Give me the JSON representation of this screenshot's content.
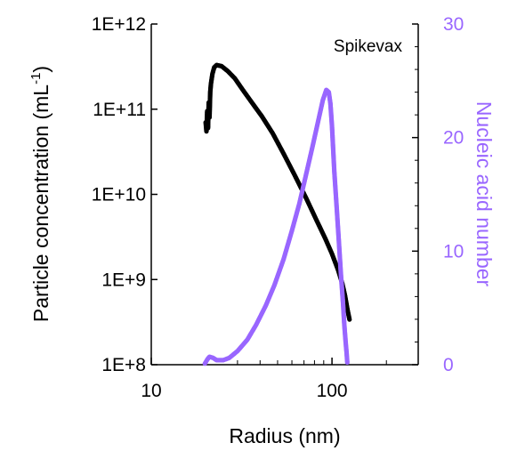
{
  "chart_data": {
    "type": "scatter",
    "annotation": "Spikevax",
    "x_axis": {
      "label": "Radius (nm)",
      "scale": "log",
      "range": [
        10,
        300
      ],
      "tick_values": [
        10,
        100
      ],
      "tick_labels": [
        "10",
        "100"
      ]
    },
    "y_left": {
      "label_main": "Particle concentration (mL",
      "label_sup": "-1",
      "label_end": ")",
      "scale": "log",
      "range": [
        100000000,
        1000000000000
      ],
      "tick_values": [
        100000000,
        1000000000,
        10000000000,
        100000000000,
        1000000000000
      ],
      "tick_labels": [
        "1E+8",
        "1E+9",
        "1E+10",
        "1E+11",
        "1E+12"
      ],
      "color": "#000000"
    },
    "y_right": {
      "label": "Nucleic acid number",
      "scale": "linear",
      "range": [
        0,
        30
      ],
      "tick_values": [
        0,
        10,
        20,
        30
      ],
      "tick_labels": [
        "0",
        "10",
        "20",
        "30"
      ],
      "color": "#9966ff"
    },
    "series": [
      {
        "axis": "left",
        "color": "#000000",
        "points": [
          [
            20.0,
            70000000000
          ],
          [
            20.2,
            55000000000
          ],
          [
            20.4,
            95000000000
          ],
          [
            20.6,
            60000000000
          ],
          [
            20.8,
            120000000000
          ],
          [
            21.0,
            80000000000
          ],
          [
            21.2,
            160000000000
          ],
          [
            21.4,
            200000000000
          ],
          [
            21.8,
            260000000000
          ],
          [
            22.3,
            310000000000
          ],
          [
            23.0,
            330000000000
          ],
          [
            24.5,
            320000000000
          ],
          [
            26.5,
            280000000000
          ],
          [
            29.0,
            230000000000
          ],
          [
            32.0,
            170000000000
          ],
          [
            36.0,
            120000000000
          ],
          [
            41.0,
            82000000000
          ],
          [
            47.0,
            52000000000
          ],
          [
            54.0,
            30000000000
          ],
          [
            62.0,
            17000000000
          ],
          [
            72.0,
            9000000000
          ],
          [
            82.0,
            5000000000
          ],
          [
            92.0,
            3000000000
          ],
          [
            100.0,
            2000000000
          ],
          [
            108.0,
            1300000000
          ],
          [
            114.0,
            900000000
          ],
          [
            118.0,
            650000000
          ],
          [
            121.0,
            480000000
          ],
          [
            123.0,
            400000000
          ],
          [
            125.0,
            340000000
          ]
        ]
      },
      {
        "axis": "right",
        "color": "#9966ff",
        "points": [
          [
            19.8,
            0.1
          ],
          [
            20.5,
            0.5
          ],
          [
            21.0,
            0.7
          ],
          [
            22.0,
            0.6
          ],
          [
            23.0,
            0.4
          ],
          [
            25.0,
            0.4
          ],
          [
            27.0,
            0.6
          ],
          [
            30.0,
            1.2
          ],
          [
            34.0,
            2.2
          ],
          [
            38.0,
            3.5
          ],
          [
            43.0,
            5.2
          ],
          [
            48.0,
            7.0
          ],
          [
            54.0,
            9.3
          ],
          [
            60.0,
            11.8
          ],
          [
            66.0,
            14.2
          ],
          [
            72.0,
            16.8
          ],
          [
            78.0,
            19.2
          ],
          [
            84.0,
            21.5
          ],
          [
            89.0,
            23.3
          ],
          [
            93.0,
            24.2
          ],
          [
            96.0,
            24.0
          ],
          [
            98.0,
            23.0
          ],
          [
            100.0,
            21.0
          ],
          [
            103.0,
            17.0
          ],
          [
            106.0,
            14.0
          ],
          [
            109.0,
            11.0
          ],
          [
            112.0,
            8.0
          ],
          [
            115.0,
            5.5
          ],
          [
            117.0,
            3.5
          ],
          [
            119.0,
            2.0
          ],
          [
            120.5,
            1.0
          ],
          [
            121.5,
            0.2
          ]
        ]
      }
    ]
  }
}
